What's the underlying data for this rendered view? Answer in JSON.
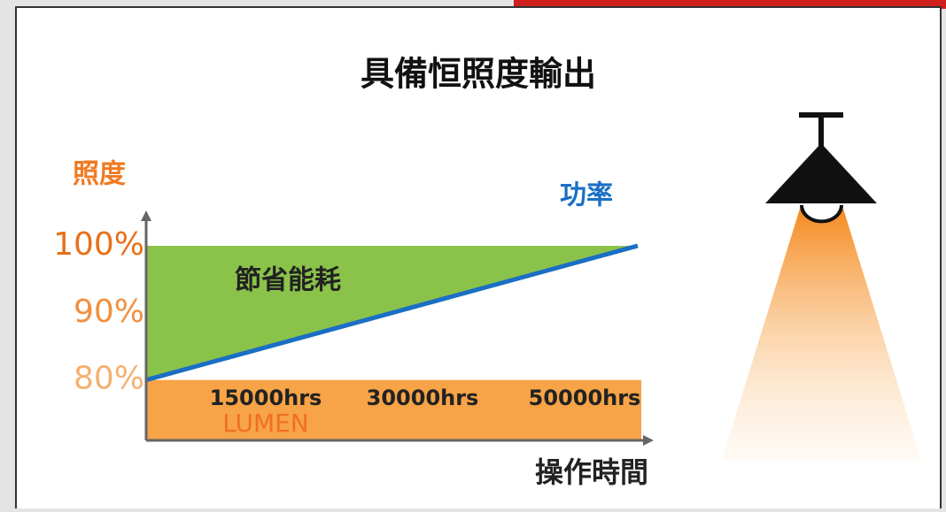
{
  "chart_data": {
    "type": "line",
    "title": "具備恒照度輸出",
    "y_label": "照度",
    "x_label": "操作時間",
    "ylim": [
      71,
      105
    ],
    "yticks": [
      {
        "value": 100,
        "label": "100%"
      },
      {
        "value": 90,
        "label": "90%"
      },
      {
        "value": 80,
        "label": "80%"
      }
    ],
    "categories": [
      null,
      null
    ],
    "series": [
      {
        "name": "功率",
        "color": "#1a6fc4",
        "values": [
          80,
          100
        ]
      }
    ],
    "saving": {
      "label": "節省能耗",
      "value": 100,
      "color": "#8bc34a"
    },
    "lumen": {
      "label": "LUMEN",
      "value": 80,
      "color": "#f7a347"
    },
    "hours": [
      "15000hrs",
      "30000hrs",
      "50000hrs"
    ]
  }
}
